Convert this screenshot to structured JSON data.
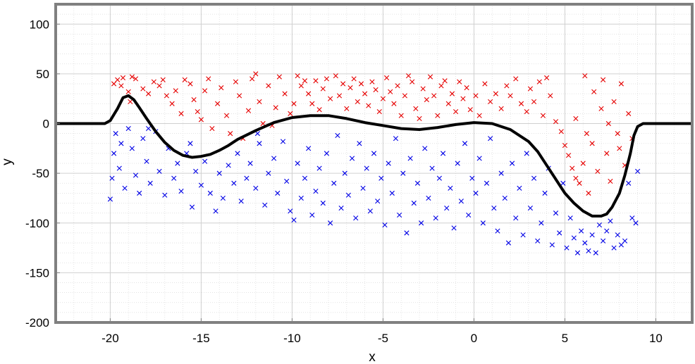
{
  "chart_data": {
    "type": "scatter",
    "title": "",
    "xlabel": "x",
    "ylabel": "y",
    "xlim": [
      -23,
      12
    ],
    "ylim": [
      -200,
      120
    ],
    "grid": "on",
    "minor_grid": "on",
    "box": "on",
    "legend": "none",
    "xticks": [
      -20,
      -15,
      -10,
      -5,
      0,
      5,
      10
    ],
    "xtick_labels": [
      "-20",
      "-15",
      "-10",
      "-5",
      "0",
      "5",
      "10"
    ],
    "yticks": [
      100,
      50,
      0,
      -50,
      -100,
      -150,
      -200
    ],
    "ytick_labels": [
      "100",
      "50",
      "0",
      "-50",
      "-100",
      "-150",
      "-200"
    ],
    "colors": {
      "class_red": "#e60000",
      "class_blue": "#0000e6",
      "boundary": "#000000",
      "frame": "#808080"
    },
    "series": [
      {
        "marker": "x",
        "color": "#e60000",
        "points": [
          [
            -19.8,
            40
          ],
          [
            -19.6,
            44
          ],
          [
            -19.4,
            38
          ],
          [
            -19.3,
            46
          ],
          [
            -19.0,
            32
          ],
          [
            -18.8,
            47
          ],
          [
            -18.6,
            45
          ],
          [
            -18.9,
            22
          ],
          [
            -18.2,
            35
          ],
          [
            -17.9,
            30
          ],
          [
            -17.6,
            42
          ],
          [
            -17.3,
            38
          ],
          [
            -17.1,
            44
          ],
          [
            -16.9,
            28
          ],
          [
            -16.6,
            20
          ],
          [
            -16.4,
            33
          ],
          [
            -16.1,
            10
          ],
          [
            -15.9,
            44
          ],
          [
            -15.6,
            40
          ],
          [
            -15.4,
            24
          ],
          [
            -15.2,
            12
          ],
          [
            -15.0,
            4
          ],
          [
            -14.8,
            33
          ],
          [
            -14.6,
            45
          ],
          [
            -14.4,
            -5
          ],
          [
            -14.1,
            20
          ],
          [
            -13.9,
            36
          ],
          [
            -13.6,
            8
          ],
          [
            -13.4,
            -10
          ],
          [
            -13.1,
            42
          ],
          [
            -12.9,
            28
          ],
          [
            -12.7,
            -15
          ],
          [
            -12.4,
            13
          ],
          [
            -12.2,
            45
          ],
          [
            -12.0,
            50
          ],
          [
            -11.8,
            22
          ],
          [
            -11.6,
            0
          ],
          [
            -11.3,
            38
          ],
          [
            -11.1,
            -2
          ],
          [
            -10.9,
            16
          ],
          [
            -10.7,
            47
          ],
          [
            -10.4,
            30
          ],
          [
            -10.1,
            10
          ],
          [
            -9.9,
            20
          ],
          [
            -9.7,
            48
          ],
          [
            -9.5,
            38
          ],
          [
            -9.3,
            43
          ],
          [
            -9.1,
            30
          ],
          [
            -8.9,
            20
          ],
          [
            -8.7,
            43
          ],
          [
            -8.5,
            14
          ],
          [
            -8.3,
            35
          ],
          [
            -8.1,
            45
          ],
          [
            -7.9,
            25
          ],
          [
            -7.6,
            48
          ],
          [
            -7.4,
            28
          ],
          [
            -7.2,
            40
          ],
          [
            -7.0,
            15
          ],
          [
            -6.8,
            36
          ],
          [
            -6.6,
            45
          ],
          [
            -6.4,
            22
          ],
          [
            -6.2,
            40
          ],
          [
            -6.0,
            30
          ],
          [
            -5.8,
            18
          ],
          [
            -5.6,
            42
          ],
          [
            -5.4,
            34
          ],
          [
            -5.2,
            12
          ],
          [
            -5.0,
            25
          ],
          [
            -4.8,
            46
          ],
          [
            -4.6,
            32
          ],
          [
            -4.4,
            20
          ],
          [
            -4.2,
            38
          ],
          [
            -4.0,
            8
          ],
          [
            -3.8,
            28
          ],
          [
            -3.6,
            48
          ],
          [
            -3.4,
            42
          ],
          [
            -3.2,
            15
          ],
          [
            -3.0,
            5
          ],
          [
            -2.8,
            35
          ],
          [
            -2.6,
            24
          ],
          [
            -2.4,
            47
          ],
          [
            -2.2,
            28
          ],
          [
            -2.0,
            8
          ],
          [
            -1.8,
            38
          ],
          [
            -1.6,
            43
          ],
          [
            -1.4,
            20
          ],
          [
            -1.2,
            30
          ],
          [
            -1.0,
            12
          ],
          [
            -0.8,
            42
          ],
          [
            -0.6,
            25
          ],
          [
            -0.4,
            36
          ],
          [
            -0.2,
            14
          ],
          [
            0.1,
            28
          ],
          [
            0.3,
            8
          ],
          [
            0.6,
            40
          ],
          [
            0.9,
            22
          ],
          [
            1.2,
            30
          ],
          [
            1.5,
            15
          ],
          [
            1.8,
            38
          ],
          [
            2.0,
            28
          ],
          [
            2.3,
            45
          ],
          [
            2.6,
            20
          ],
          [
            2.9,
            12
          ],
          [
            3.1,
            35
          ],
          [
            3.3,
            22
          ],
          [
            3.6,
            42
          ],
          [
            3.8,
            8
          ],
          [
            4.0,
            46
          ],
          [
            4.2,
            28
          ],
          [
            4.5,
            2
          ],
          [
            4.8,
            -8
          ],
          [
            5.0,
            -22
          ],
          [
            5.2,
            -32
          ],
          [
            5.4,
            -45
          ],
          [
            5.6,
            -55
          ],
          [
            5.8,
            -60
          ],
          [
            6.0,
            -40
          ],
          [
            6.1,
            48
          ],
          [
            6.3,
            -70
          ],
          [
            6.5,
            -20
          ],
          [
            6.6,
            32
          ],
          [
            6.8,
            -48
          ],
          [
            7.0,
            15
          ],
          [
            7.1,
            44
          ],
          [
            7.3,
            -30
          ],
          [
            7.5,
            -58
          ],
          [
            7.7,
            22
          ],
          [
            7.9,
            -10
          ],
          [
            8.1,
            40
          ],
          [
            8.3,
            -42
          ],
          [
            8.5,
            10
          ],
          [
            8.7,
            -15
          ],
          [
            5.6,
            5
          ],
          [
            6.2,
            -10
          ],
          [
            7.4,
            0
          ],
          [
            8.0,
            -25
          ]
        ]
      },
      {
        "marker": "x",
        "color": "#0000e6",
        "points": [
          [
            -20.0,
            -76
          ],
          [
            -19.9,
            -55
          ],
          [
            -19.8,
            -30
          ],
          [
            -19.7,
            -10
          ],
          [
            -19.5,
            -45
          ],
          [
            -19.4,
            -20
          ],
          [
            -19.2,
            -65
          ],
          [
            -19.0,
            -5
          ],
          [
            -18.8,
            -25
          ],
          [
            -18.6,
            -52
          ],
          [
            -18.4,
            -70
          ],
          [
            -18.2,
            -15
          ],
          [
            -18.0,
            -38
          ],
          [
            -17.8,
            -60
          ],
          [
            -17.5,
            -8
          ],
          [
            -17.3,
            -48
          ],
          [
            -17.0,
            -72
          ],
          [
            -16.8,
            -25
          ],
          [
            -16.5,
            -55
          ],
          [
            -16.3,
            -40
          ],
          [
            -16.1,
            -68
          ],
          [
            -15.8,
            -30
          ],
          [
            -15.5,
            -84
          ],
          [
            -15.3,
            -48
          ],
          [
            -15.0,
            -62
          ],
          [
            -14.8,
            -38
          ],
          [
            -14.5,
            -70
          ],
          [
            -14.2,
            -88
          ],
          [
            -14.0,
            -50
          ],
          [
            -13.8,
            -75
          ],
          [
            -13.5,
            -42
          ],
          [
            -13.2,
            -60
          ],
          [
            -13.0,
            -30
          ],
          [
            -12.8,
            -78
          ],
          [
            -12.5,
            -55
          ],
          [
            -12.3,
            -40
          ],
          [
            -12.0,
            -65
          ],
          [
            -11.8,
            -20
          ],
          [
            -11.5,
            -82
          ],
          [
            -11.3,
            -50
          ],
          [
            -11.0,
            -35
          ],
          [
            -10.8,
            -70
          ],
          [
            -10.5,
            -18
          ],
          [
            -10.3,
            -58
          ],
          [
            -10.1,
            -88
          ],
          [
            -9.9,
            -97
          ],
          [
            -9.7,
            -40
          ],
          [
            -9.5,
            -75
          ],
          [
            -9.3,
            -55
          ],
          [
            -9.1,
            -25
          ],
          [
            -8.9,
            -92
          ],
          [
            -8.7,
            -68
          ],
          [
            -8.5,
            -45
          ],
          [
            -8.3,
            -80
          ],
          [
            -8.1,
            -30
          ],
          [
            -7.9,
            -100
          ],
          [
            -7.7,
            -60
          ],
          [
            -7.5,
            -12
          ],
          [
            -7.3,
            -85
          ],
          [
            -7.1,
            -50
          ],
          [
            -6.9,
            -72
          ],
          [
            -6.7,
            -35
          ],
          [
            -6.5,
            -95
          ],
          [
            -6.3,
            -20
          ],
          [
            -6.1,
            -65
          ],
          [
            -5.9,
            -45
          ],
          [
            -5.7,
            -88
          ],
          [
            -5.5,
            -30
          ],
          [
            -5.3,
            -78
          ],
          [
            -5.1,
            -55
          ],
          [
            -4.9,
            -102
          ],
          [
            -4.7,
            -40
          ],
          [
            -4.5,
            -70
          ],
          [
            -4.3,
            -15
          ],
          [
            -4.1,
            -92
          ],
          [
            -3.9,
            -50
          ],
          [
            -3.7,
            -110
          ],
          [
            -3.5,
            -35
          ],
          [
            -3.3,
            -80
          ],
          [
            -3.1,
            -60
          ],
          [
            -2.9,
            -100
          ],
          [
            -2.7,
            -25
          ],
          [
            -2.5,
            -75
          ],
          [
            -2.3,
            -45
          ],
          [
            -2.1,
            -95
          ],
          [
            -1.9,
            -55
          ],
          [
            -1.7,
            -30
          ],
          [
            -1.5,
            -85
          ],
          [
            -1.3,
            -65
          ],
          [
            -1.1,
            -105
          ],
          [
            -0.9,
            -40
          ],
          [
            -0.7,
            -78
          ],
          [
            -0.5,
            -20
          ],
          [
            -0.3,
            -92
          ],
          [
            -0.1,
            -55
          ],
          [
            0.1,
            -70
          ],
          [
            0.3,
            -35
          ],
          [
            0.5,
            -100
          ],
          [
            0.7,
            -60
          ],
          [
            0.9,
            -15
          ],
          [
            1.1,
            -85
          ],
          [
            1.3,
            -108
          ],
          [
            1.5,
            -50
          ],
          [
            1.7,
            -75
          ],
          [
            1.9,
            -120
          ],
          [
            2.1,
            -40
          ],
          [
            2.3,
            -95
          ],
          [
            2.5,
            -65
          ],
          [
            2.7,
            -112
          ],
          [
            2.9,
            -30
          ],
          [
            3.1,
            -85
          ],
          [
            3.3,
            -55
          ],
          [
            3.5,
            -118
          ],
          [
            3.7,
            -100
          ],
          [
            3.9,
            -70
          ],
          [
            4.1,
            -45
          ],
          [
            4.3,
            -122
          ],
          [
            4.5,
            -90
          ],
          [
            4.7,
            -110
          ],
          [
            4.9,
            -60
          ],
          [
            5.1,
            -125
          ],
          [
            5.3,
            -95
          ],
          [
            5.5,
            -115
          ],
          [
            5.7,
            -130
          ],
          [
            5.9,
            -108
          ],
          [
            6.1,
            -120
          ],
          [
            6.3,
            -128
          ],
          [
            6.5,
            -112
          ],
          [
            6.7,
            -130
          ],
          [
            6.9,
            -102
          ],
          [
            7.1,
            -118
          ],
          [
            7.3,
            -108
          ],
          [
            7.5,
            -98
          ],
          [
            7.7,
            -125
          ],
          [
            7.9,
            -112
          ],
          [
            8.1,
            -122
          ],
          [
            8.3,
            -118
          ],
          [
            8.5,
            -60
          ],
          [
            8.7,
            -95
          ],
          [
            8.9,
            -100
          ],
          [
            9.0,
            -48
          ],
          [
            -17.9,
            -5
          ],
          [
            -15.6,
            -20
          ],
          [
            -11.9,
            -10
          ]
        ]
      }
    ],
    "boundary_line": {
      "color": "#000000",
      "x": [
        -23,
        -20.3,
        -20.0,
        -19.6,
        -19.3,
        -19.0,
        -18.7,
        -18.4,
        -18.0,
        -17.5,
        -17.0,
        -16.5,
        -16.0,
        -15.5,
        -15.0,
        -14.5,
        -14.0,
        -13.5,
        -13.0,
        -12.0,
        -11.0,
        -10.0,
        -9.0,
        -8.0,
        -7.0,
        -6.0,
        -5.0,
        -4.0,
        -3.0,
        -2.0,
        -1.0,
        0.0,
        1.0,
        2.0,
        3.0,
        3.5,
        4.0,
        4.5,
        5.0,
        5.5,
        6.0,
        6.5,
        7.0,
        7.3,
        7.6,
        8.0,
        8.3,
        8.6,
        8.8,
        9.0,
        9.3,
        9.7,
        10.5,
        12
      ],
      "y": [
        0,
        0,
        3,
        15,
        26,
        28,
        24,
        16,
        5,
        -8,
        -19,
        -27,
        -32,
        -34,
        -33,
        -31,
        -27,
        -22,
        -16,
        -7,
        1,
        6,
        8,
        8,
        5,
        1,
        -2,
        -5,
        -6,
        -4,
        -1,
        1,
        0,
        -6,
        -18,
        -28,
        -42,
        -56,
        -70,
        -80,
        -88,
        -93,
        -93,
        -91,
        -84,
        -70,
        -52,
        -30,
        -12,
        -3,
        0,
        0,
        0,
        0
      ]
    }
  }
}
